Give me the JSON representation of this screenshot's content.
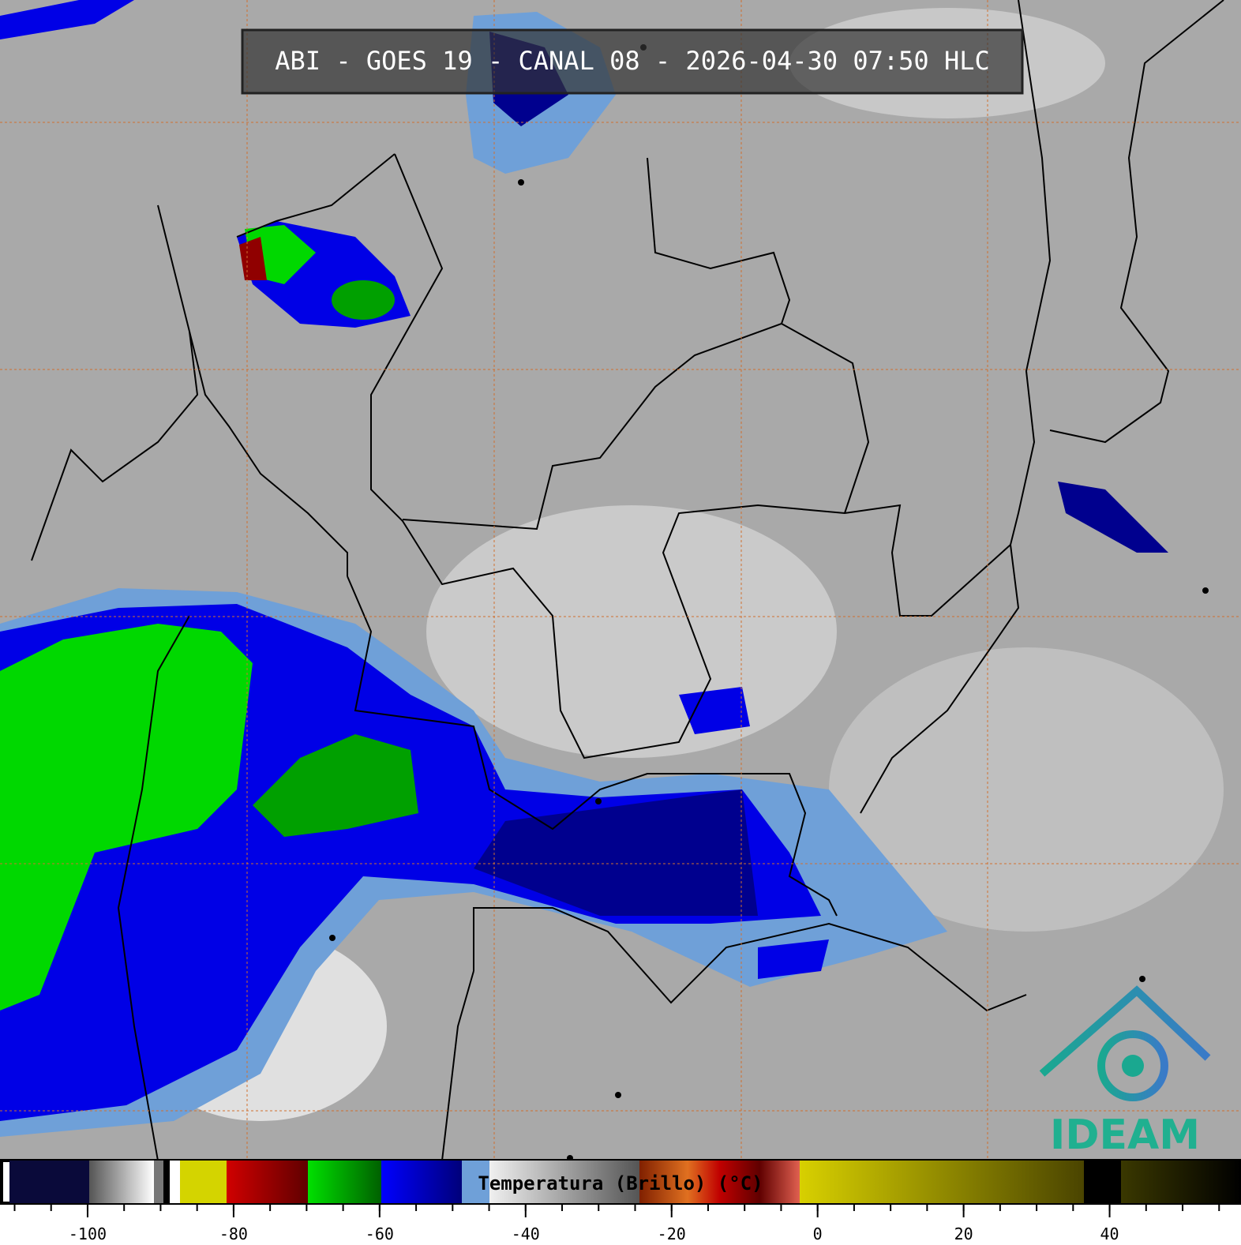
{
  "title": "ABI - GOES 19 - CANAL 08 - 2026-04-30 07:50 HLC",
  "logo": "IDEAM",
  "colorbar": {
    "label": "Temperatura (Brillo) (°C)",
    "range": [
      -112,
      58
    ],
    "ticks": [
      -100,
      -80,
      -60,
      -40,
      -20,
      0,
      20,
      40
    ]
  }
}
